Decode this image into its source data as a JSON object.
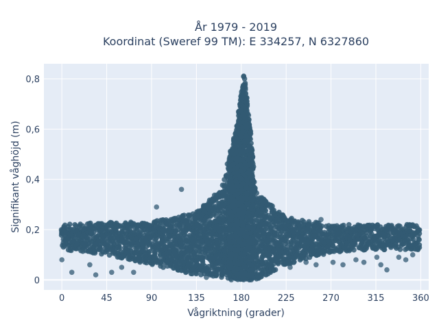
{
  "chart_data": {
    "type": "scatter",
    "title_lines": [
      "År 1979 - 2019",
      "Koordinat (Sweref 99 TM): E 334257, N 6327860"
    ],
    "xlabel": "Vågriktning (grader)",
    "ylabel": "Signifikant våghöjd (m)",
    "xlim": [
      -18,
      368
    ],
    "ylim": [
      -0.04,
      0.86
    ],
    "x_ticks": [
      0,
      45,
      90,
      135,
      180,
      225,
      270,
      315,
      360
    ],
    "x_tick_labels": [
      "0",
      "45",
      "90",
      "135",
      "180",
      "225",
      "270",
      "315",
      "360"
    ],
    "y_ticks": [
      0,
      0.2,
      0.4,
      0.6,
      0.8
    ],
    "y_tick_labels": [
      "0",
      "0,2",
      "0,4",
      "0,6",
      "0,8"
    ],
    "grid": true,
    "marker_color": "#325a73",
    "plot_background": "#e5ecf6",
    "series": [
      {
        "band_envelope": [
          {
            "x": 0,
            "low": 0.12,
            "high": 0.22
          },
          {
            "x": 45,
            "low": 0.1,
            "high": 0.23
          },
          {
            "x": 90,
            "low": 0.06,
            "high": 0.23
          },
          {
            "x": 135,
            "low": 0.02,
            "high": 0.27
          },
          {
            "x": 160,
            "low": 0.01,
            "high": 0.36
          },
          {
            "x": 175,
            "low": 0.0,
            "high": 0.6
          },
          {
            "x": 183,
            "low": 0.0,
            "high": 0.83
          },
          {
            "x": 195,
            "low": 0.0,
            "high": 0.35
          },
          {
            "x": 225,
            "low": 0.06,
            "high": 0.25
          },
          {
            "x": 270,
            "low": 0.11,
            "high": 0.22
          },
          {
            "x": 315,
            "low": 0.12,
            "high": 0.22
          },
          {
            "x": 360,
            "low": 0.12,
            "high": 0.22
          }
        ],
        "points": [
          {
            "x": 0,
            "y": 0.08
          },
          {
            "x": 10,
            "y": 0.03
          },
          {
            "x": 28,
            "y": 0.06
          },
          {
            "x": 34,
            "y": 0.02
          },
          {
            "x": 50,
            "y": 0.03
          },
          {
            "x": 60,
            "y": 0.05
          },
          {
            "x": 72,
            "y": 0.03
          },
          {
            "x": 95,
            "y": 0.29
          },
          {
            "x": 120,
            "y": 0.36
          },
          {
            "x": 145,
            "y": 0.01
          },
          {
            "x": 170,
            "y": 0.0
          },
          {
            "x": 190,
            "y": 0.0
          },
          {
            "x": 205,
            "y": 0.02
          },
          {
            "x": 229,
            "y": 0.05
          },
          {
            "x": 245,
            "y": 0.07
          },
          {
            "x": 255,
            "y": 0.06
          },
          {
            "x": 260,
            "y": 0.24
          },
          {
            "x": 272,
            "y": 0.07
          },
          {
            "x": 282,
            "y": 0.06
          },
          {
            "x": 295,
            "y": 0.08
          },
          {
            "x": 303,
            "y": 0.07
          },
          {
            "x": 316,
            "y": 0.09
          },
          {
            "x": 320,
            "y": 0.06
          },
          {
            "x": 326,
            "y": 0.04
          },
          {
            "x": 338,
            "y": 0.09
          },
          {
            "x": 345,
            "y": 0.08
          },
          {
            "x": 352,
            "y": 0.1
          }
        ]
      }
    ]
  }
}
